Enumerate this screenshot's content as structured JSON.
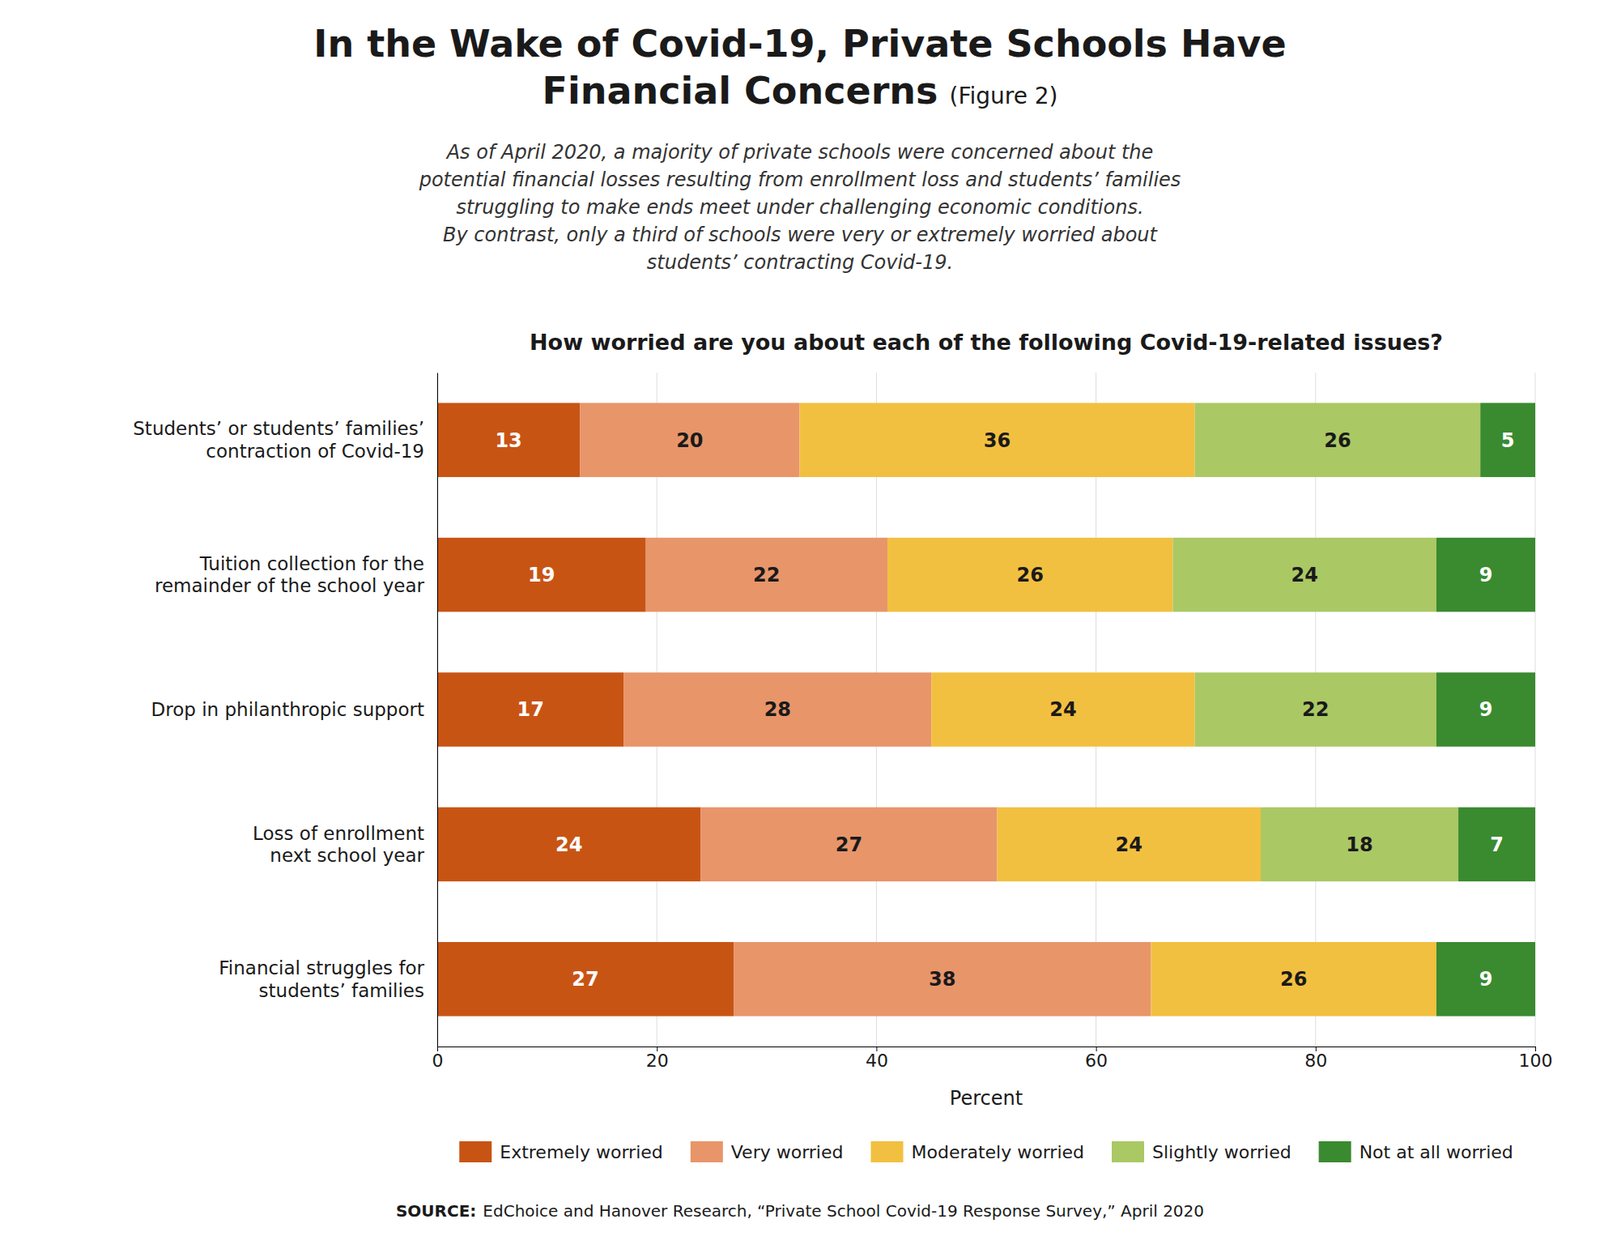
{
  "chart_data": {
    "type": "bar",
    "orientation": "horizontal",
    "stacked": true,
    "data_labels": true,
    "grid": true,
    "legend": "bottom",
    "heading": [
      "In the Wake of Covid-19, Private Schools Have",
      "Financial Concerns"
    ],
    "heading_note": "(Figure 2)",
    "subtitle": [
      "As of April 2020, a majority of private schools were concerned about the",
      "potential financial losses resulting from enrollment loss and students’ families",
      "struggling to make ends meet under challenging economic conditions.",
      "By contrast, only a third of schools were very or extremely worried about",
      "students’ contracting Covid-19."
    ],
    "title": "How worried are you about each of the following Covid-19-related issues?",
    "categories": [
      "Students’ or students’ families’\ncontraction of Covid-19",
      "Tuition collection for the\nremainder of the school year",
      "Drop in philanthropic support",
      "Loss of enrollment\nnext school year",
      "Financial struggles for\nstudents’ families"
    ],
    "series": [
      {
        "name": "Extremely worried",
        "color": "#c85414",
        "values": [
          13,
          19,
          17,
          24,
          27
        ]
      },
      {
        "name": "Very worried",
        "color": "#e8956a",
        "values": [
          20,
          22,
          28,
          27,
          38
        ]
      },
      {
        "name": "Moderately worried",
        "color": "#f2c040",
        "values": [
          36,
          26,
          24,
          24,
          26
        ]
      },
      {
        "name": "Slightly worried",
        "color": "#aac864",
        "values": [
          26,
          24,
          22,
          18,
          0
        ]
      },
      {
        "name": "Not at all worried",
        "color": "#3a8a30",
        "values": [
          5,
          9,
          9,
          7,
          9
        ]
      }
    ],
    "xlabel": "Percent",
    "xlim": [
      0,
      100
    ],
    "xticks": [
      0,
      20,
      40,
      60,
      80,
      100
    ],
    "source_label": "SOURCE:",
    "source": "EdChoice and Hanover Research, “Private School Covid-19 Response Survey,” April 2020"
  }
}
